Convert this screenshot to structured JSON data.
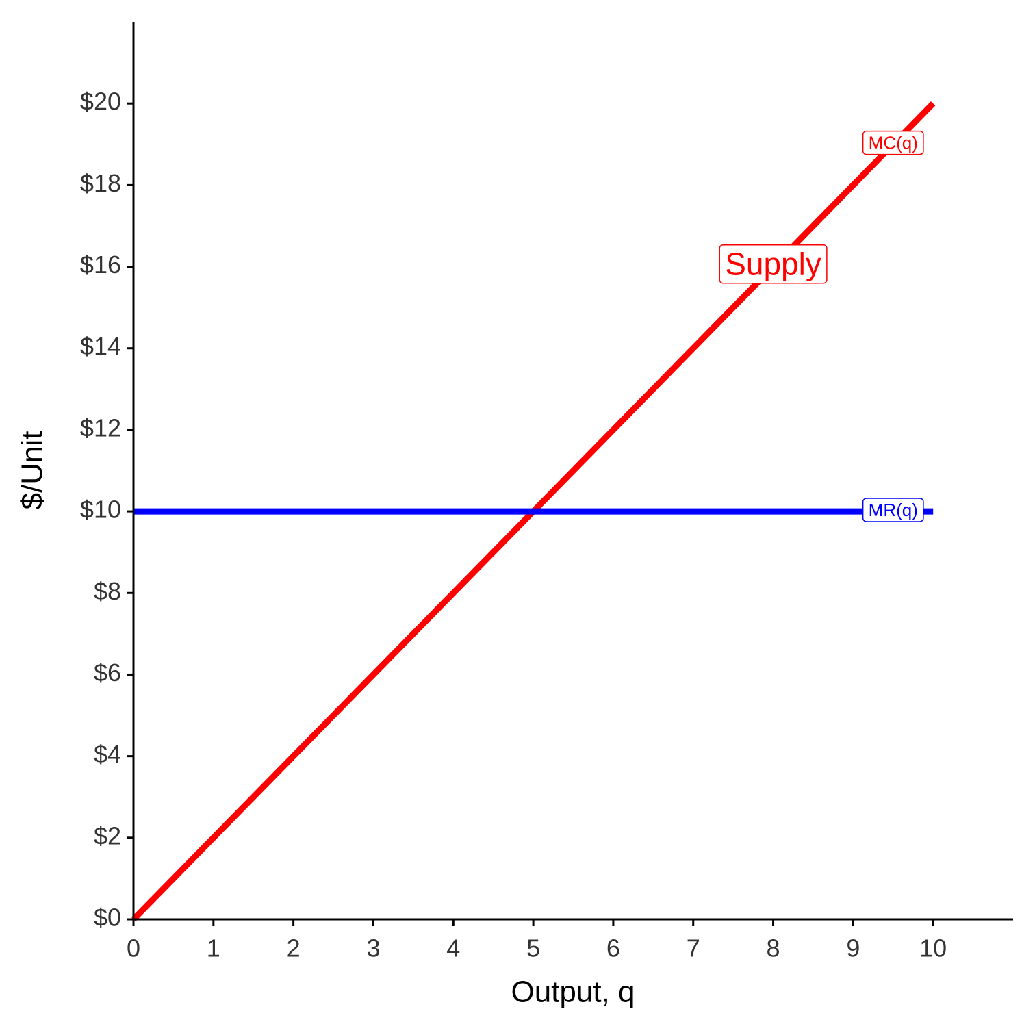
{
  "chart_data": {
    "type": "line",
    "x_label": "Output, q",
    "y_label": "$/Unit",
    "annotations": [
      "Supply"
    ],
    "series": [
      {
        "name": "MC(q)",
        "color": "#ff0000",
        "x": [
          0,
          10
        ],
        "values": [
          0,
          20
        ]
      },
      {
        "name": "MR(q)",
        "color": "#0000ff",
        "x": [
          0,
          10
        ],
        "values": [
          10,
          10
        ]
      }
    ],
    "xlim": [
      0,
      11
    ],
    "ylim": [
      0,
      22
    ],
    "xticks": [
      0,
      1,
      2,
      3,
      4,
      5,
      6,
      7,
      8,
      9,
      10
    ],
    "yticks": [
      {
        "value": 0,
        "label": "$0"
      },
      {
        "value": 2,
        "label": "$2"
      },
      {
        "value": 4,
        "label": "$4"
      },
      {
        "value": 6,
        "label": "$6"
      },
      {
        "value": 8,
        "label": "$8"
      },
      {
        "value": 10,
        "label": "$10"
      },
      {
        "value": 12,
        "label": "$12"
      },
      {
        "value": 14,
        "label": "$14"
      },
      {
        "value": 16,
        "label": "$16"
      },
      {
        "value": 18,
        "label": "$18"
      },
      {
        "value": 20,
        "label": "$20"
      }
    ],
    "grid": false
  }
}
